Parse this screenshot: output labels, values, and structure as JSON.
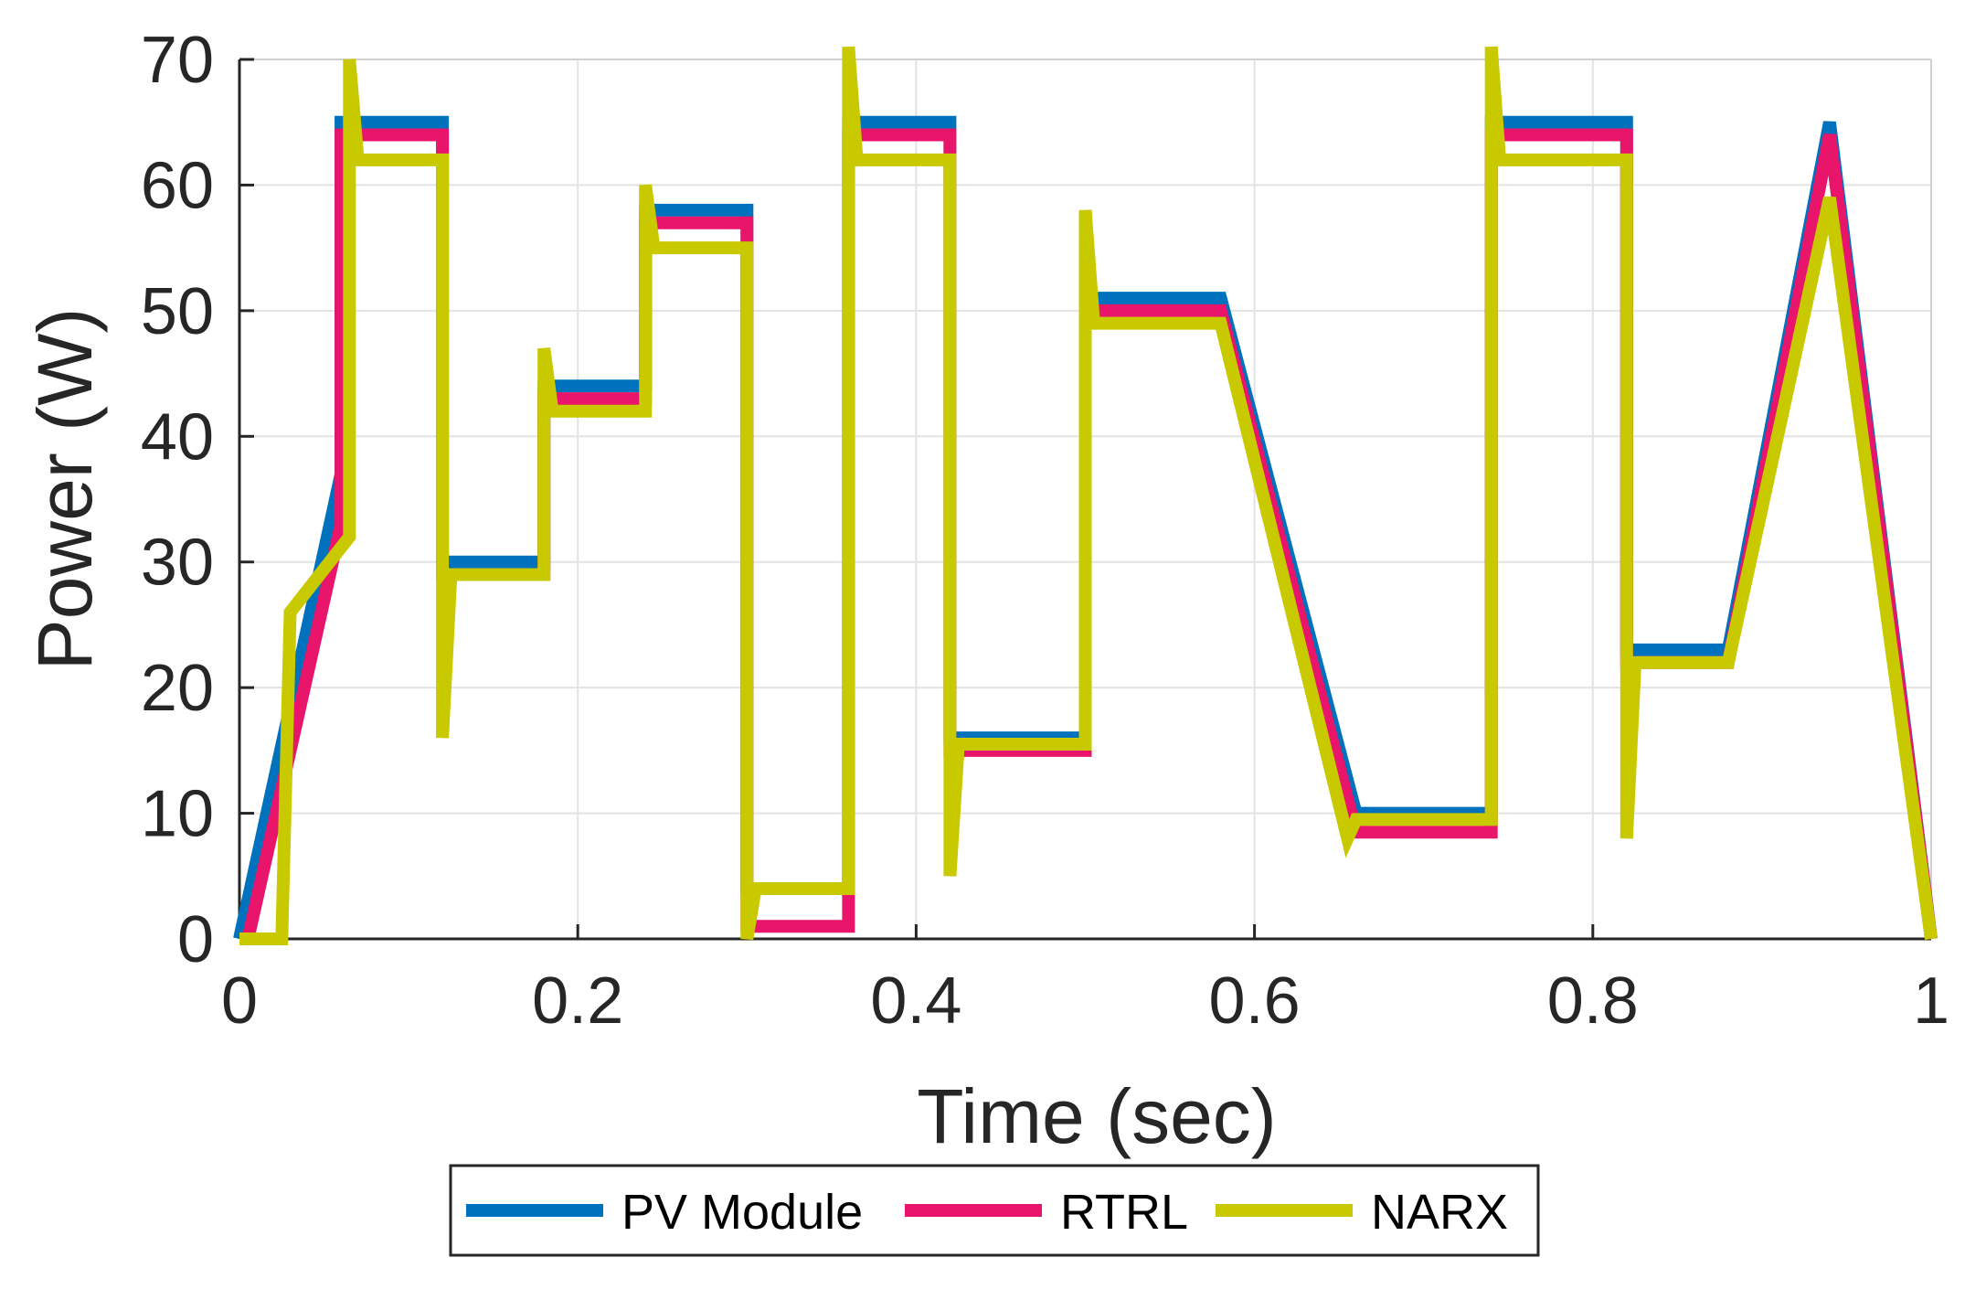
{
  "chart_data": {
    "type": "line",
    "title": "",
    "xlabel": "Time (sec)",
    "ylabel": "Power (W)",
    "xlim": [
      0,
      1
    ],
    "ylim": [
      0,
      70
    ],
    "xticks": [
      0,
      0.2,
      0.4,
      0.6,
      0.8,
      1
    ],
    "xtick_labels": [
      "0",
      "0.2",
      "0.4",
      "0.6",
      "0.8",
      "1"
    ],
    "yticks": [
      0,
      10,
      20,
      30,
      40,
      50,
      60,
      70
    ],
    "ytick_labels": [
      "0",
      "10",
      "20",
      "30",
      "40",
      "50",
      "60",
      "70"
    ],
    "grid": true,
    "legend_position": "bottom",
    "series": [
      {
        "name": "PV Module",
        "color": "#0072BD",
        "x": [
          0,
          0.06,
          0.06,
          0.12,
          0.12,
          0.18,
          0.18,
          0.24,
          0.24,
          0.3,
          0.3,
          0.36,
          0.36,
          0.42,
          0.42,
          0.5,
          0.5,
          0.58,
          0.66,
          0.74,
          0.74,
          0.82,
          0.82,
          0.88,
          0.94,
          1.0
        ],
        "y": [
          0,
          37,
          65,
          65,
          30,
          30,
          44,
          44,
          58,
          58,
          4,
          4,
          65,
          65,
          16,
          16,
          51,
          51,
          10,
          10,
          65,
          65,
          23,
          23,
          65,
          0
        ]
      },
      {
        "name": "RTRL",
        "color": "#E8156B",
        "x": [
          0,
          0.005,
          0.06,
          0.06,
          0.12,
          0.12,
          0.18,
          0.18,
          0.24,
          0.24,
          0.3,
          0.3,
          0.36,
          0.36,
          0.42,
          0.42,
          0.5,
          0.5,
          0.58,
          0.66,
          0.74,
          0.74,
          0.82,
          0.82,
          0.88,
          0.94,
          1.0
        ],
        "y": [
          0,
          0,
          33,
          64,
          64,
          29,
          29,
          43,
          43,
          57,
          57,
          1,
          1,
          64,
          64,
          15,
          15,
          50,
          50,
          8.5,
          8.5,
          64,
          64,
          22,
          22,
          64,
          0
        ]
      },
      {
        "name": "NARX",
        "color": "#C9C900",
        "x": [
          0,
          0.025,
          0.03,
          0.065,
          0.065,
          0.07,
          0.12,
          0.12,
          0.125,
          0.18,
          0.18,
          0.185,
          0.24,
          0.24,
          0.245,
          0.3,
          0.3,
          0.305,
          0.36,
          0.36,
          0.365,
          0.42,
          0.42,
          0.425,
          0.5,
          0.5,
          0.505,
          0.58,
          0.655,
          0.66,
          0.74,
          0.74,
          0.745,
          0.82,
          0.82,
          0.825,
          0.88,
          0.94,
          1.0
        ],
        "y": [
          0,
          0,
          26,
          32,
          70,
          62,
          62,
          16,
          29,
          29,
          47,
          42,
          42,
          60,
          55,
          55,
          0,
          4,
          4,
          71,
          62,
          62,
          5,
          15.5,
          15.5,
          58,
          49,
          49,
          8,
          9.5,
          9.5,
          71,
          62,
          62,
          8,
          22,
          22,
          59,
          0
        ]
      }
    ]
  }
}
